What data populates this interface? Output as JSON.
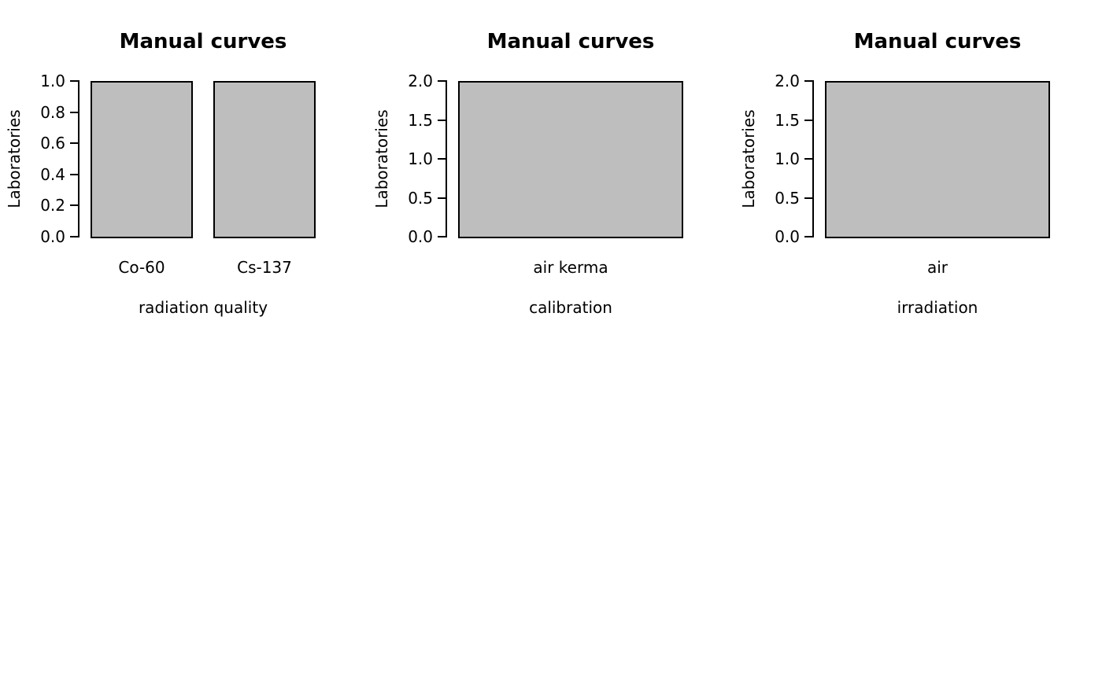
{
  "page": {
    "background": "#ffffff",
    "text_color": "#000000"
  },
  "style": {
    "bar_fill": "#bebebe",
    "bar_border": "#000000",
    "axis_color": "#000000"
  },
  "chart_data": [
    {
      "type": "bar",
      "title": "Manual curves",
      "categories": [
        "Co-60",
        "Cs-137"
      ],
      "values": [
        1,
        1
      ],
      "xlabel": "radiation quality",
      "ylabel": "Laboratories",
      "ylim": [
        0,
        1
      ],
      "yticks": [
        "0.0",
        "0.2",
        "0.4",
        "0.6",
        "0.8",
        "1.0"
      ],
      "grid": false,
      "legend": "none"
    },
    {
      "type": "bar",
      "title": "Manual curves",
      "categories": [
        "air kerma"
      ],
      "values": [
        2
      ],
      "xlabel": "calibration",
      "ylabel": "Laboratories",
      "ylim": [
        0,
        2
      ],
      "yticks": [
        "0.0",
        "0.5",
        "1.0",
        "1.5",
        "2.0"
      ],
      "grid": false,
      "legend": "none"
    },
    {
      "type": "bar",
      "title": "Manual curves",
      "categories": [
        "air"
      ],
      "values": [
        2
      ],
      "xlabel": "irradiation",
      "ylabel": "Laboratories",
      "ylim": [
        0,
        2
      ],
      "yticks": [
        "0.0",
        "0.5",
        "1.0",
        "1.5",
        "2.0"
      ],
      "grid": false,
      "legend": "none"
    }
  ]
}
